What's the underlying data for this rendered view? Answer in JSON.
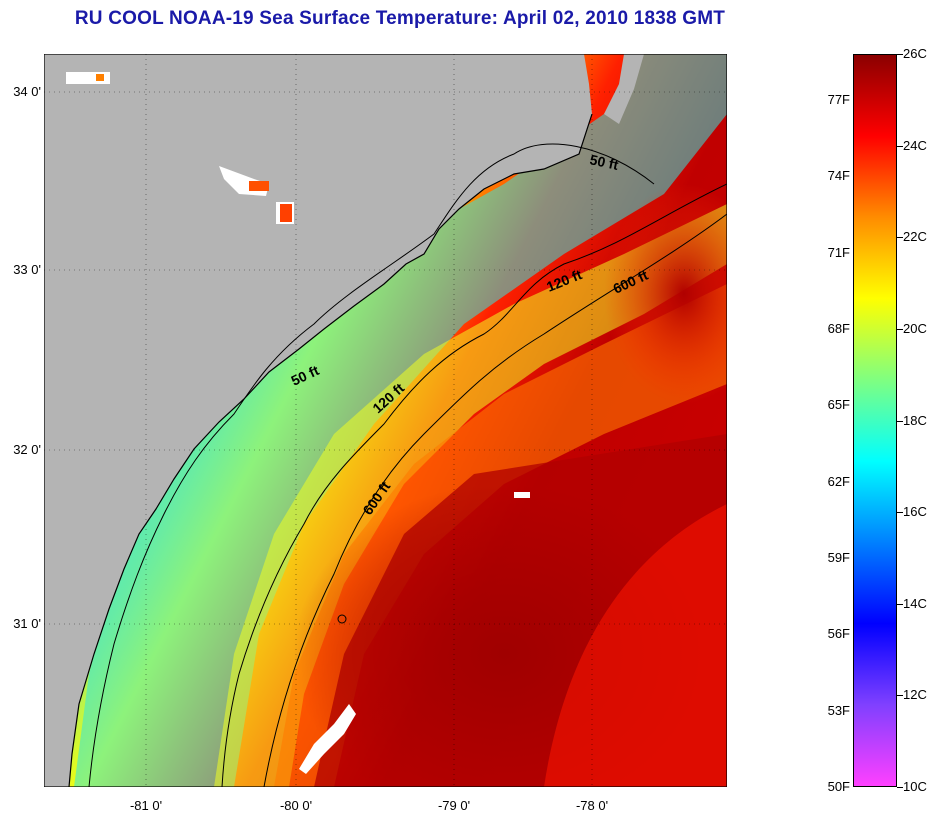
{
  "title": "RU COOL  NOAA-19  Sea Surface Temperature:  April 02, 2010 1838 GMT",
  "map": {
    "land_color": "#b4b4b4",
    "lat_labels": [
      "34 0'",
      "33 0'",
      "32 0'",
      "31 0'"
    ],
    "lon_labels": [
      "-81 0'",
      "-80 0'",
      "-79 0'",
      "-78 0'"
    ],
    "isobath_labels": [
      {
        "text": "50 ft"
      },
      {
        "text": "50 ft"
      },
      {
        "text": "120 ft"
      },
      {
        "text": "120 ft"
      },
      {
        "text": "600 ft"
      },
      {
        "text": "600 ft"
      }
    ]
  },
  "colorbar": {
    "fahrenheit_labels": [
      "77F",
      "74F",
      "71F",
      "68F",
      "65F",
      "62F",
      "59F",
      "56F",
      "53F",
      "50F"
    ],
    "celsius_labels": [
      "26C",
      "24C",
      "22C",
      "20C",
      "18C",
      "16C",
      "14C",
      "12C",
      "10C"
    ],
    "range_c": [
      10,
      26
    ],
    "colors": [
      "#8b0000",
      "#ff0000",
      "#ff8c00",
      "#ffff00",
      "#80ff80",
      "#00ffff",
      "#0080ff",
      "#0000ff",
      "#8040ff",
      "#ff40ff"
    ]
  }
}
